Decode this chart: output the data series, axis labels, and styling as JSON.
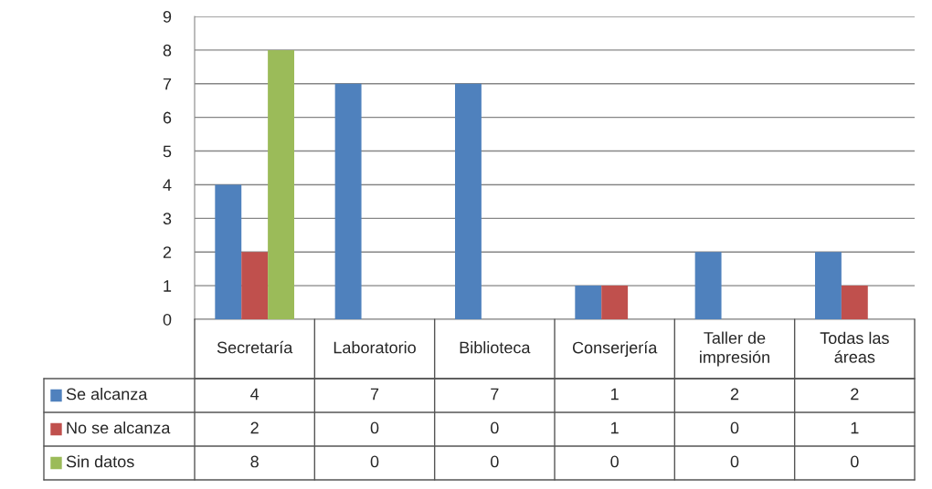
{
  "chart_data": {
    "type": "bar",
    "categories": [
      "Secretaría",
      "Laboratorio",
      "Biblioteca",
      "Conserjería",
      "Taller de impresión",
      "Todas las áreas"
    ],
    "series": [
      {
        "name": "Se alcanza",
        "color": "#4f81bd",
        "values": [
          4,
          7,
          7,
          1,
          2,
          2
        ]
      },
      {
        "name": "No se alcanza",
        "color": "#c0504d",
        "values": [
          2,
          0,
          0,
          1,
          0,
          1
        ]
      },
      {
        "name": "Sin datos",
        "color": "#9bbb59",
        "values": [
          8,
          0,
          0,
          0,
          0,
          0
        ]
      }
    ],
    "ylim": [
      0,
      9
    ],
    "yticks": [
      0,
      1,
      2,
      3,
      4,
      5,
      6,
      7,
      8,
      9
    ],
    "grid": "y",
    "legend": "bottom left",
    "data_labels": true
  }
}
